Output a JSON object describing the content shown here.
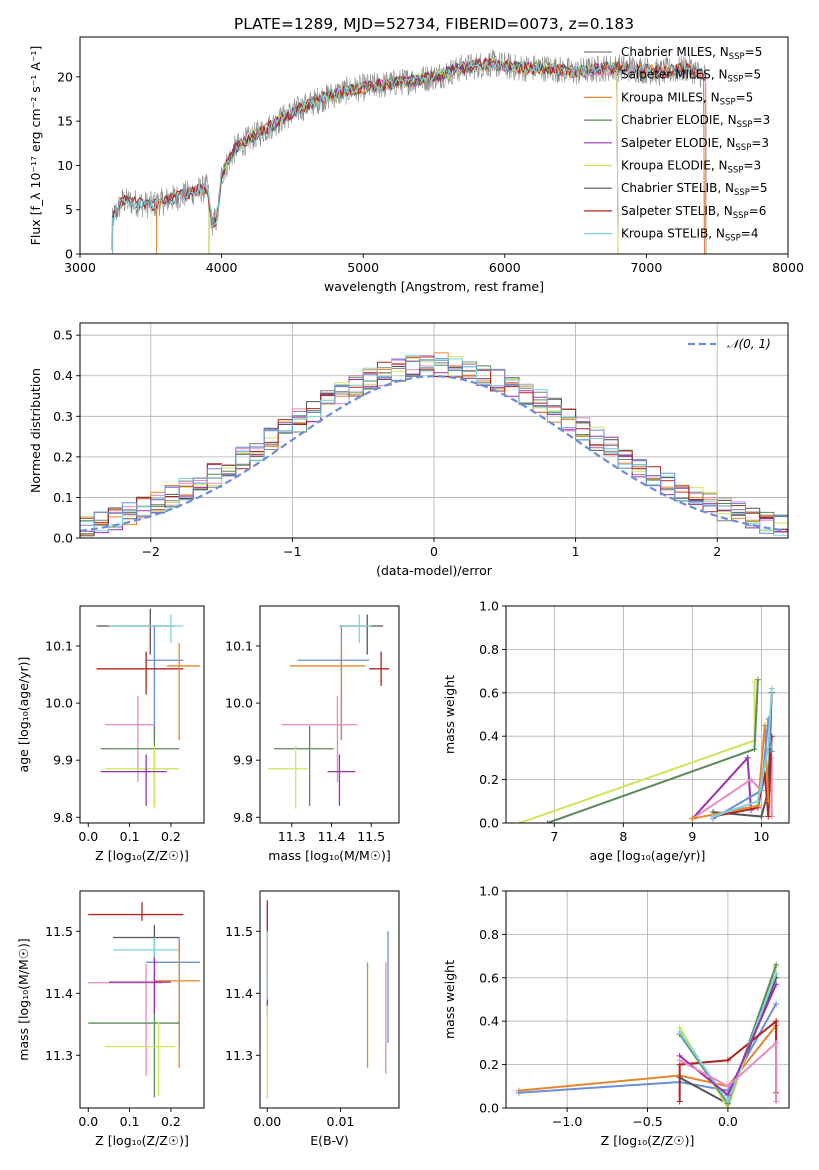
{
  "figure_title": "PLATE=1289, MJD=52734, FIBERID=0073, z=0.183",
  "colors": {
    "chabrier_miles": "#7f7f7f",
    "salpeter_miles": "#e78ac3",
    "kroupa_miles": "#e6862c",
    "chabrier_elodie": "#5a8a5a",
    "salpeter_elodie": "#9b30b0",
    "kroupa_elodie": "#cfe65c",
    "chabrier_stelib": "#555555",
    "salpeter_stelib": "#b22222",
    "kroupa_stelib": "#7fd3e0",
    "blue": "#6a8fd6"
  },
  "chart_data": [
    {
      "id": "spectrum",
      "type": "line",
      "xlabel": "wavelength [Angstrom, rest frame]",
      "ylabel": "Flux [f_λ 10⁻¹⁷ erg cm⁻² s⁻¹ A⁻¹]",
      "xlim": [
        3000,
        8000
      ],
      "ylim": [
        0,
        24.5
      ],
      "xticks": [
        "3000",
        "4000",
        "5000",
        "6000",
        "7000",
        "8000"
      ],
      "yticks": [
        "0",
        "5",
        "10",
        "15",
        "20"
      ],
      "legend_position": "top-right",
      "legend": [
        {
          "label": "Chabrier MILES, N",
          "sub": "SSP",
          "suffix": "=5",
          "color": "#7f7f7f"
        },
        {
          "label": "Salpeter MILES, N",
          "sub": "SSP",
          "suffix": "=5",
          "color": "#e78ac3"
        },
        {
          "label": "Kroupa MILES, N",
          "sub": "SSP",
          "suffix": "=5",
          "color": "#e6862c"
        },
        {
          "label": "Chabrier ELODIE, N",
          "sub": "SSP",
          "suffix": "=3",
          "color": "#5a8a5a"
        },
        {
          "label": "Salpeter ELODIE, N",
          "sub": "SSP",
          "suffix": "=3",
          "color": "#9b30b0"
        },
        {
          "label": "Kroupa ELODIE, N",
          "sub": "SSP",
          "suffix": "=3",
          "color": "#cfe65c"
        },
        {
          "label": "Chabrier STELIB, N",
          "sub": "SSP",
          "suffix": "=5",
          "color": "#555555"
        },
        {
          "label": "Salpeter STELIB, N",
          "sub": "SSP",
          "suffix": "=6",
          "color": "#b22222"
        },
        {
          "label": "Kroupa STELIB, N",
          "sub": "SSP",
          "suffix": "=4",
          "color": "#7fd3e0"
        }
      ],
      "continuum": [
        [
          3220,
          0
        ],
        [
          3230,
          4
        ],
        [
          3300,
          6
        ],
        [
          3500,
          5.5
        ],
        [
          3600,
          6
        ],
        [
          3800,
          7
        ],
        [
          3900,
          7.5
        ],
        [
          3930,
          3.5
        ],
        [
          3970,
          4
        ],
        [
          4000,
          9
        ],
        [
          4100,
          12
        ],
        [
          4300,
          14
        ],
        [
          4500,
          16
        ],
        [
          4700,
          17.5
        ],
        [
          4900,
          18.5
        ],
        [
          5100,
          19
        ],
        [
          5300,
          19.5
        ],
        [
          5500,
          20
        ],
        [
          5700,
          21
        ],
        [
          5900,
          21.5
        ],
        [
          6100,
          21
        ],
        [
          6300,
          21
        ],
        [
          6500,
          20.5
        ],
        [
          6700,
          21
        ],
        [
          6900,
          21
        ],
        [
          7100,
          20.5
        ],
        [
          7300,
          21
        ],
        [
          7420,
          20
        ]
      ],
      "spectrum_range": [
        3220,
        7420
      ],
      "model_starts": {
        "miles": 3540,
        "elodie": 3910,
        "stelib": 3230
      },
      "model_ends": {
        "miles": 7410,
        "elodie": 6800,
        "stelib": 7420
      }
    },
    {
      "id": "residuals",
      "type": "bar",
      "xlabel": "(data-model)/error",
      "ylabel": "Normed distribution",
      "xlim": [
        -2.5,
        2.5
      ],
      "ylim": [
        0,
        0.53
      ],
      "xticks": [
        "−2",
        "−1",
        "0",
        "1",
        "2"
      ],
      "yticks": [
        "0.0",
        "0.1",
        "0.2",
        "0.3",
        "0.4",
        "0.5"
      ],
      "grid": true,
      "legend_position": "top-right",
      "legend": [
        {
          "label": "𝒩(0, 1)",
          "color": "#6a8fd6",
          "style": "dashed"
        }
      ],
      "bin_width": 0.1,
      "bin_start": -2.5
    },
    {
      "id": "Z-vs-age",
      "type": "scatter",
      "xlabel": "Z [log₁₀(Z/Z☉)]",
      "ylabel": "age  [log₁₀(age/yr)]",
      "xlim": [
        -0.02,
        0.28
      ],
      "ylim": [
        9.79,
        10.17
      ],
      "xticks": [
        "0.0",
        "0.1",
        "0.2"
      ],
      "yticks": [
        "9.8",
        "9.9",
        "10.0",
        "10.1"
      ],
      "points": [
        {
          "x": 0.16,
          "y": 10.075,
          "xerr": [
            0.02,
            0.07
          ],
          "yerr": [
            0.14,
            0.06
          ],
          "color": "#6a8fd6"
        },
        {
          "x": 0.14,
          "y": 10.06,
          "xerr": [
            0.12,
            0.09
          ],
          "yerr": [
            0.045,
            0.03
          ],
          "color": "#b22222"
        },
        {
          "x": 0.15,
          "y": 10.135,
          "xerr": [
            0.13,
            0.06
          ],
          "yerr": [
            0.05,
            0.03
          ],
          "color": "#555555"
        },
        {
          "x": 0.2,
          "y": 10.135,
          "xerr": [
            0.15,
            0.03
          ],
          "yerr": [
            0.03,
            0.02
          ],
          "color": "#7fd3e0"
        },
        {
          "x": 0.22,
          "y": 10.065,
          "xerr": [
            0.03,
            0.05
          ],
          "yerr": [
            0.13,
            0.04
          ],
          "color": "#e6862c"
        },
        {
          "x": 0.12,
          "y": 9.962,
          "xerr": [
            0.08,
            0.04
          ],
          "yerr": [
            0.1,
            0.05
          ],
          "color": "#e78ac3"
        },
        {
          "x": 0.16,
          "y": 9.92,
          "xerr": [
            0.13,
            0.06
          ],
          "yerr": [
            0.1,
            0.04
          ],
          "color": "#5a8a5a"
        },
        {
          "x": 0.16,
          "y": 9.885,
          "xerr": [
            0.12,
            0.06
          ],
          "yerr": [
            0.07,
            0.04
          ],
          "color": "#cfe65c"
        },
        {
          "x": 0.14,
          "y": 9.88,
          "xerr": [
            0.11,
            0.05
          ],
          "yerr": [
            0.06,
            0.03
          ],
          "color": "#9b30b0"
        }
      ]
    },
    {
      "id": "mass-vs-age",
      "type": "scatter",
      "xlabel": "mass [log₁₀(M/M☉)]",
      "ylabel": "",
      "xlim": [
        11.22,
        11.57
      ],
      "ylim": [
        9.79,
        10.17
      ],
      "xticks": [
        "11.3",
        "11.4",
        "11.5"
      ],
      "yticks": [
        "9.8",
        "9.9",
        "10.0",
        "10.1"
      ],
      "points": [
        {
          "x": 11.425,
          "y": 10.075,
          "xerr": [
            0.11,
            0.07
          ],
          "yerr": [
            0.14,
            0.06
          ],
          "color": "#6a8fd6"
        },
        {
          "x": 11.525,
          "y": 10.06,
          "xerr": [
            0.03,
            0.02
          ],
          "yerr": [
            0.03,
            0.03
          ],
          "color": "#b22222"
        },
        {
          "x": 11.49,
          "y": 10.135,
          "xerr": [
            0.07,
            0.04
          ],
          "yerr": [
            0.05,
            0.02
          ],
          "color": "#555555"
        },
        {
          "x": 11.47,
          "y": 10.135,
          "xerr": [
            0.05,
            0.03
          ],
          "yerr": [
            0.03,
            0.02
          ],
          "color": "#7fd3e0"
        },
        {
          "x": 11.425,
          "y": 10.065,
          "xerr": [
            0.13,
            0.06
          ],
          "yerr": [
            0.13,
            0.04
          ],
          "color": "#e6862c"
        },
        {
          "x": 11.415,
          "y": 9.962,
          "xerr": [
            0.14,
            0.05
          ],
          "yerr": [
            0.1,
            0.05
          ],
          "color": "#e78ac3"
        },
        {
          "x": 11.345,
          "y": 9.92,
          "xerr": [
            0.09,
            0.06
          ],
          "yerr": [
            0.1,
            0.04
          ],
          "color": "#5a8a5a"
        },
        {
          "x": 11.31,
          "y": 9.885,
          "xerr": [
            0.07,
            0.03
          ],
          "yerr": [
            0.07,
            0.04
          ],
          "color": "#cfe65c"
        },
        {
          "x": 11.42,
          "y": 9.88,
          "xerr": [
            0.03,
            0.04
          ],
          "yerr": [
            0.06,
            0.03
          ],
          "color": "#9b30b0"
        }
      ]
    },
    {
      "id": "age-vs-weight",
      "type": "line",
      "xlabel": "age  [log₁₀(age/yr)]",
      "ylabel": "mass weight",
      "xlim": [
        6.3,
        10.4
      ],
      "ylim": [
        0,
        1.0
      ],
      "xticks": [
        "7",
        "8",
        "9",
        "10"
      ],
      "yticks": [
        "0.0",
        "0.2",
        "0.4",
        "0.6",
        "0.8",
        "1.0"
      ],
      "grid": true,
      "series": [
        {
          "color": "#cfe65c",
          "x": [
            6.5,
            9.9,
            9.9
          ],
          "y": [
            0.0,
            0.38,
            0.65
          ]
        },
        {
          "color": "#5a8a5a",
          "x": [
            6.9,
            9.9,
            9.95
          ],
          "y": [
            0.0,
            0.34,
            0.66
          ]
        },
        {
          "color": "#9b30b0",
          "x": [
            9.0,
            9.8,
            9.85
          ],
          "y": [
            0.02,
            0.3,
            0.06
          ]
        },
        {
          "color": "#e78ac3",
          "x": [
            9.0,
            9.85,
            10.0,
            10.15,
            10.15
          ],
          "y": [
            0.02,
            0.2,
            0.15,
            0.3,
            0.03
          ]
        },
        {
          "color": "#555555",
          "x": [
            9.3,
            10.0,
            10.1,
            10.15
          ],
          "y": [
            0.05,
            0.03,
            0.15,
            0.6
          ]
        },
        {
          "color": "#b22222",
          "x": [
            9.3,
            9.95,
            10.05,
            10.1,
            10.15
          ],
          "y": [
            0.03,
            0.07,
            0.23,
            0.03,
            0.4
          ]
        },
        {
          "color": "#e6862c",
          "x": [
            9.0,
            9.95,
            10.05,
            10.1
          ],
          "y": [
            0.02,
            0.08,
            0.45,
            0.1
          ]
        },
        {
          "color": "#6a8fd6",
          "x": [
            9.3,
            10.0,
            10.1,
            10.15
          ],
          "y": [
            0.02,
            0.15,
            0.48,
            0.33
          ]
        },
        {
          "color": "#7fd3e0",
          "x": [
            9.3,
            9.95,
            10.1,
            10.15
          ],
          "y": [
            0.03,
            0.1,
            0.35,
            0.62
          ]
        }
      ]
    },
    {
      "id": "Z-vs-mass",
      "type": "scatter",
      "xlabel": "Z [log₁₀(Z/Z☉)]",
      "ylabel": "mass [log₁₀(M/M☉)]",
      "xlim": [
        -0.02,
        0.28
      ],
      "ylim": [
        11.215,
        11.565
      ],
      "xticks": [
        "0.0",
        "0.1",
        "0.2"
      ],
      "yticks": [
        "11.3",
        "11.4",
        "11.5"
      ],
      "points": [
        {
          "x": 0.22,
          "y": 11.45,
          "xerr": [
            0.08,
            0.05
          ],
          "yerr": [
            0.13,
            0.04
          ],
          "color": "#6a8fd6"
        },
        {
          "x": 0.13,
          "y": 11.527,
          "xerr": [
            0.13,
            0.1
          ],
          "yerr": [
            0.01,
            0.02
          ],
          "color": "#b22222"
        },
        {
          "x": 0.16,
          "y": 11.49,
          "xerr": [
            0.1,
            0.06
          ],
          "yerr": [
            0.04,
            0.02
          ],
          "color": "#555555"
        },
        {
          "x": 0.16,
          "y": 11.47,
          "xerr": [
            0.1,
            0.06
          ],
          "yerr": [
            0.02,
            0.02
          ],
          "color": "#7fd3e0"
        },
        {
          "x": 0.22,
          "y": 11.42,
          "xerr": [
            0.06,
            0.05
          ],
          "yerr": [
            0.14,
            0.06
          ],
          "color": "#e6862c"
        },
        {
          "x": 0.14,
          "y": 11.417,
          "xerr": [
            0.14,
            0.04
          ],
          "yerr": [
            0.15,
            0.03
          ],
          "color": "#e78ac3"
        },
        {
          "x": 0.16,
          "y": 11.352,
          "xerr": [
            0.16,
            0.06
          ],
          "yerr": [
            0.12,
            0.08
          ],
          "color": "#5a8a5a"
        },
        {
          "x": 0.17,
          "y": 11.314,
          "xerr": [
            0.13,
            0.04
          ],
          "yerr": [
            0.08,
            0.04
          ],
          "color": "#cfe65c"
        },
        {
          "x": 0.16,
          "y": 11.418,
          "xerr": [
            0.11,
            0.04
          ],
          "yerr": [
            0.05,
            0.04
          ],
          "color": "#9b30b0"
        }
      ]
    },
    {
      "id": "EBV-vs-mass",
      "type": "scatter",
      "xlabel": "E(B-V)",
      "ylabel": "",
      "xlim": [
        -0.001,
        0.018
      ],
      "ylim": [
        11.215,
        11.565
      ],
      "xticks": [
        "0.00",
        "0.01"
      ],
      "yticks": [
        "11.3",
        "11.4",
        "11.5"
      ],
      "points": [
        {
          "x": 0.0,
          "y": 11.5,
          "xerr": [
            0,
            0
          ],
          "yerr": [
            0.07,
            0.05
          ],
          "color": "#b22222"
        },
        {
          "x": 0.0,
          "y": 11.41,
          "xerr": [
            0,
            0
          ],
          "yerr": [
            0.05,
            0.04
          ],
          "color": "#9b30b0"
        },
        {
          "x": 0.0,
          "y": 11.3,
          "xerr": [
            0,
            0
          ],
          "yerr": [
            0.07,
            0.08
          ],
          "color": "#cfe65c"
        },
        {
          "x": 0.0,
          "y": 11.45,
          "xerr": [
            0,
            0
          ],
          "yerr": [
            0.06,
            0.05
          ],
          "color": "#7fd3e0"
        },
        {
          "x": 0.0137,
          "y": 11.36,
          "xerr": [
            0,
            0
          ],
          "yerr": [
            0.08,
            0.09
          ],
          "color": "#e6862c"
        },
        {
          "x": 0.0162,
          "y": 11.36,
          "xerr": [
            0,
            0
          ],
          "yerr": [
            0.09,
            0.09
          ],
          "color": "#e78ac3"
        },
        {
          "x": 0.0165,
          "y": 11.4,
          "xerr": [
            0,
            0
          ],
          "yerr": [
            0.08,
            0.1
          ],
          "color": "#6a8fd6"
        }
      ]
    },
    {
      "id": "Z-vs-weight",
      "type": "line",
      "xlabel": "Z [log₁₀(Z/Z☉)]",
      "ylabel": "mass weight",
      "xlim": [
        -1.38,
        0.38
      ],
      "ylim": [
        0,
        1.0
      ],
      "xticks": [
        "−1.0",
        "−0.5",
        "0.0"
      ],
      "yticks": [
        "0.0",
        "0.2",
        "0.4",
        "0.6",
        "0.8",
        "1.0"
      ],
      "grid": true,
      "series": [
        {
          "color": "#e6862c",
          "x": [
            -1.3,
            -0.3,
            0.0,
            0.3,
            0.3
          ],
          "y": [
            0.08,
            0.15,
            0.1,
            0.38,
            0.03
          ]
        },
        {
          "color": "#6a8fd6",
          "x": [
            -1.3,
            -0.3,
            0.0,
            0.3
          ],
          "y": [
            0.07,
            0.12,
            0.08,
            0.48
          ]
        },
        {
          "color": "#b22222",
          "x": [
            -0.3,
            -0.3,
            0.0,
            0.3,
            0.3
          ],
          "y": [
            0.03,
            0.2,
            0.22,
            0.4,
            0.07
          ]
        },
        {
          "color": "#555555",
          "x": [
            -0.3,
            0.0,
            0.3,
            0.3
          ],
          "y": [
            0.14,
            0.02,
            0.6,
            0.62
          ]
        },
        {
          "color": "#cfe65c",
          "x": [
            -0.3,
            0.0,
            0.3
          ],
          "y": [
            0.37,
            0.0,
            0.65
          ]
        },
        {
          "color": "#5a8a5a",
          "x": [
            -0.3,
            0.0,
            0.3
          ],
          "y": [
            0.34,
            0.02,
            0.66
          ]
        },
        {
          "color": "#7fd3e0",
          "x": [
            -0.3,
            0.0,
            0.3
          ],
          "y": [
            0.35,
            0.03,
            0.62
          ]
        },
        {
          "color": "#9b30b0",
          "x": [
            -0.3,
            0.0,
            0.3
          ],
          "y": [
            0.24,
            0.06,
            0.57
          ]
        },
        {
          "color": "#e78ac3",
          "x": [
            -0.3,
            0.0,
            0.3,
            0.3
          ],
          "y": [
            0.22,
            0.1,
            0.3,
            0.03
          ]
        }
      ]
    }
  ]
}
